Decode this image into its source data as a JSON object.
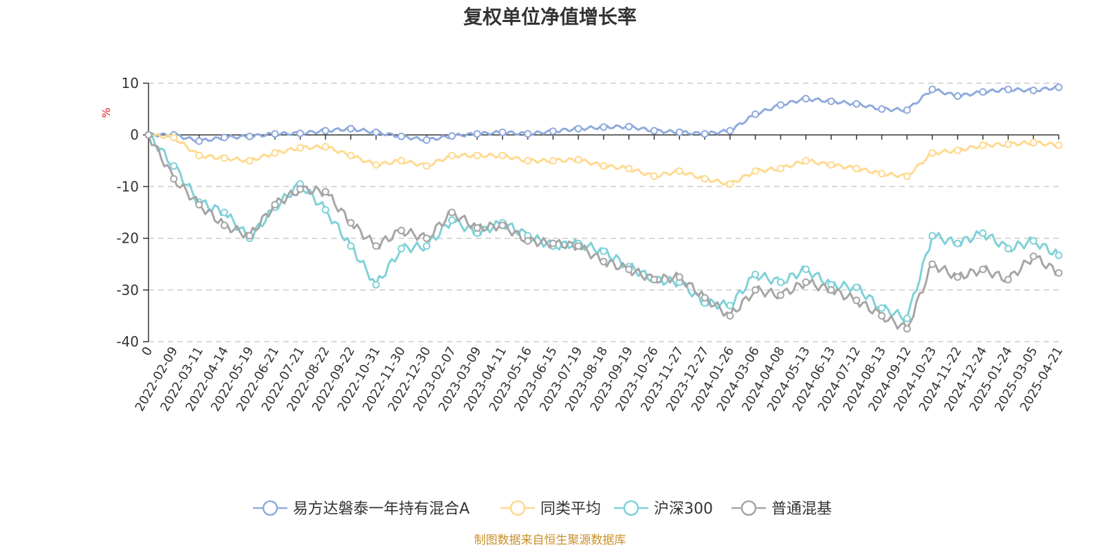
{
  "chart_data": {
    "type": "line",
    "title": "复权单位净值增长率",
    "ylabel": "%",
    "xlabel": "",
    "ylim": [
      -40,
      10
    ],
    "yticks": [
      10,
      0,
      -10,
      -20,
      -30,
      -40
    ],
    "grid": true,
    "legend_position": "bottom",
    "x": [
      "0",
      "2022-02-09",
      "2022-03-11",
      "2022-04-14",
      "2022-05-19",
      "2022-06-21",
      "2022-07-21",
      "2022-08-22",
      "2022-09-22",
      "2022-10-31",
      "2022-11-30",
      "2022-12-30",
      "2023-02-07",
      "2023-03-09",
      "2023-04-11",
      "2023-05-16",
      "2023-06-15",
      "2023-07-19",
      "2023-08-18",
      "2023-09-19",
      "2023-10-26",
      "2023-11-27",
      "2023-12-27",
      "2024-01-26",
      "2024-03-06",
      "2024-04-08",
      "2024-05-13",
      "2024-06-13",
      "2024-07-12",
      "2024-08-13",
      "2024-09-12",
      "2024-10-23",
      "2024-11-22",
      "2024-12-24",
      "2025-01-24",
      "2025-03-05",
      "2025-04-21"
    ],
    "series": [
      {
        "name": "易方达磐泰一年持有混合A",
        "color": "#8faadc",
        "values": [
          0,
          0,
          -1.2,
          -0.5,
          -0.3,
          0.2,
          0.3,
          0.8,
          1.2,
          0.5,
          -0.3,
          -1.0,
          -0.2,
          0.2,
          0.5,
          0.2,
          0.7,
          1.2,
          1.5,
          1.6,
          0.8,
          0.5,
          0.2,
          0.8,
          4.0,
          5.8,
          7.0,
          6.5,
          6.0,
          5.0,
          4.8,
          8.8,
          7.5,
          8.3,
          8.8,
          8.6,
          9.2
        ]
      },
      {
        "name": "同类平均",
        "color": "#ffd98e",
        "values": [
          0,
          -0.5,
          -4.0,
          -4.5,
          -5.0,
          -3.5,
          -2.5,
          -2.3,
          -4.0,
          -5.8,
          -5.0,
          -6.0,
          -4.0,
          -4.0,
          -4.0,
          -5.0,
          -5.0,
          -4.8,
          -6.0,
          -6.5,
          -8.0,
          -7.0,
          -8.5,
          -9.5,
          -7.0,
          -6.5,
          -5.0,
          -5.8,
          -6.5,
          -7.5,
          -8.0,
          -3.5,
          -3.0,
          -2.0,
          -1.8,
          -1.5,
          -2.0
        ]
      },
      {
        "name": "沪深300",
        "color": "#7fd1d8",
        "values": [
          0,
          -6.0,
          -13.0,
          -15.0,
          -20.0,
          -14.0,
          -9.5,
          -14.5,
          -21.5,
          -29.0,
          -22.0,
          -21.5,
          -16.5,
          -19.0,
          -17.0,
          -19.5,
          -21.5,
          -21.0,
          -22.5,
          -25.5,
          -28.0,
          -28.5,
          -32.5,
          -33.0,
          -27.0,
          -28.5,
          -26.0,
          -29.0,
          -29.5,
          -33.5,
          -35.5,
          -19.5,
          -21.0,
          -19.0,
          -22.0,
          -20.5,
          -23.3
        ]
      },
      {
        "name": "普通混基",
        "color": "#a5a5a5",
        "values": [
          0,
          -8.5,
          -13.5,
          -17.5,
          -19.5,
          -13.5,
          -10.5,
          -11.0,
          -17.0,
          -21.5,
          -18.5,
          -20.0,
          -15.0,
          -18.0,
          -17.5,
          -20.5,
          -21.0,
          -21.5,
          -24.5,
          -26.0,
          -28.0,
          -27.5,
          -31.5,
          -35.0,
          -30.0,
          -31.0,
          -28.5,
          -30.0,
          -32.0,
          -35.0,
          -37.5,
          -25.0,
          -27.5,
          -26.0,
          -28.0,
          -23.5,
          -26.7
        ]
      }
    ]
  },
  "source_text": "制图数据来自恒生聚源数据库"
}
